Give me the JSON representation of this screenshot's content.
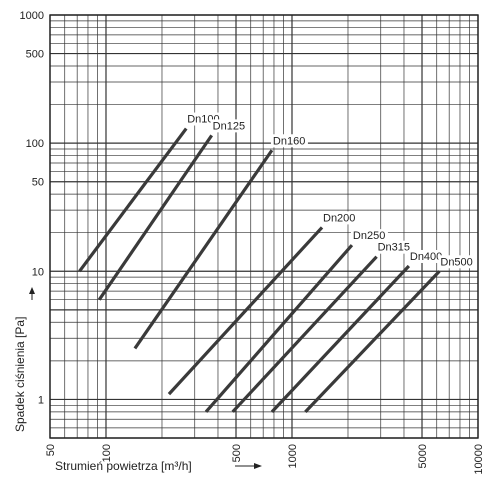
{
  "chart_data": {
    "type": "line",
    "x_scale": "log",
    "y_scale": "log",
    "xlim": [
      50,
      10000
    ],
    "ylim": [
      0.5,
      1000
    ],
    "xlabel": "Strumień powietrza [m³/h]",
    "ylabel": "Spadek ciśnienia [Pa]",
    "x_tick_labels": [
      "50",
      "100",
      "500",
      "1000",
      "5000",
      "10000"
    ],
    "y_tick_labels": [
      "1",
      "10",
      "50",
      "100",
      "500",
      "1000"
    ],
    "grid": true,
    "series": [
      {
        "name": "Dn100",
        "points": [
          [
            72,
            10
          ],
          [
            270,
            130
          ]
        ]
      },
      {
        "name": "Dn125",
        "points": [
          [
            92,
            6
          ],
          [
            370,
            115
          ]
        ]
      },
      {
        "name": "Dn160",
        "points": [
          [
            143,
            2.5
          ],
          [
            780,
            88
          ]
        ]
      },
      {
        "name": "Dn200",
        "points": [
          [
            218,
            1.1
          ],
          [
            1450,
            22
          ]
        ]
      },
      {
        "name": "Dn250",
        "points": [
          [
            345,
            0.8
          ],
          [
            2100,
            16
          ]
        ]
      },
      {
        "name": "Dn315",
        "points": [
          [
            480,
            0.8
          ],
          [
            2850,
            13
          ]
        ]
      },
      {
        "name": "Dn400",
        "points": [
          [
            780,
            0.8
          ],
          [
            4250,
            11
          ]
        ]
      },
      {
        "name": "Dn500",
        "points": [
          [
            1180,
            0.8
          ],
          [
            6200,
            10
          ]
        ]
      }
    ]
  }
}
